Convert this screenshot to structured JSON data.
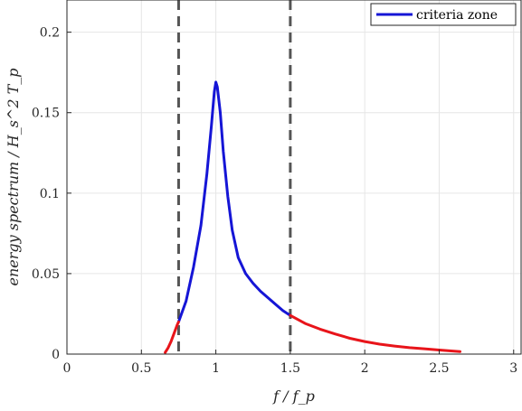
{
  "chart_data": {
    "type": "line",
    "title": "",
    "xlabel": "f / f_p",
    "ylabel": "energy spectrum / H_s^2 T_p",
    "xlim": [
      0,
      3.05
    ],
    "ylim": [
      0,
      0.22
    ],
    "xticks": [
      0,
      0.5,
      1,
      1.5,
      2,
      2.5,
      3
    ],
    "xtick_labels": [
      "0",
      "0.5",
      "1",
      "1.5",
      "2",
      "2.5",
      "3"
    ],
    "yticks": [
      0,
      0.05,
      0.1,
      0.15,
      0.2
    ],
    "ytick_labels": [
      "0",
      "0.05",
      "0.1",
      "0.15",
      "0.2"
    ],
    "grid": true,
    "legend_position": "top-right",
    "vlines": [
      0.75,
      1.5
    ],
    "series": [
      {
        "name": "criteria zone",
        "color": "#1515d6",
        "x": [
          0.75,
          0.8,
          0.85,
          0.9,
          0.94,
          0.97,
          0.99,
          1.0,
          1.01,
          1.03,
          1.05,
          1.08,
          1.11,
          1.15,
          1.2,
          1.25,
          1.3,
          1.35,
          1.4,
          1.45,
          1.5
        ],
        "y": [
          0.02,
          0.033,
          0.054,
          0.08,
          0.112,
          0.142,
          0.163,
          0.169,
          0.166,
          0.15,
          0.126,
          0.098,
          0.077,
          0.06,
          0.05,
          0.044,
          0.039,
          0.035,
          0.031,
          0.027,
          0.024
        ]
      },
      {
        "color": "#e8141a",
        "x": [
          0.66,
          0.68,
          0.7,
          0.72,
          0.74,
          0.75
        ],
        "y": [
          0.001,
          0.004,
          0.008,
          0.013,
          0.018,
          0.02
        ]
      },
      {
        "color": "#e8141a",
        "x": [
          1.5,
          1.6,
          1.7,
          1.8,
          1.9,
          2.0,
          2.1,
          2.2,
          2.3,
          2.4,
          2.5,
          2.64
        ],
        "y": [
          0.024,
          0.019,
          0.0155,
          0.0125,
          0.0098,
          0.0078,
          0.0062,
          0.005,
          0.004,
          0.0033,
          0.0025,
          0.0015
        ]
      }
    ],
    "vline_color": "#555555"
  }
}
